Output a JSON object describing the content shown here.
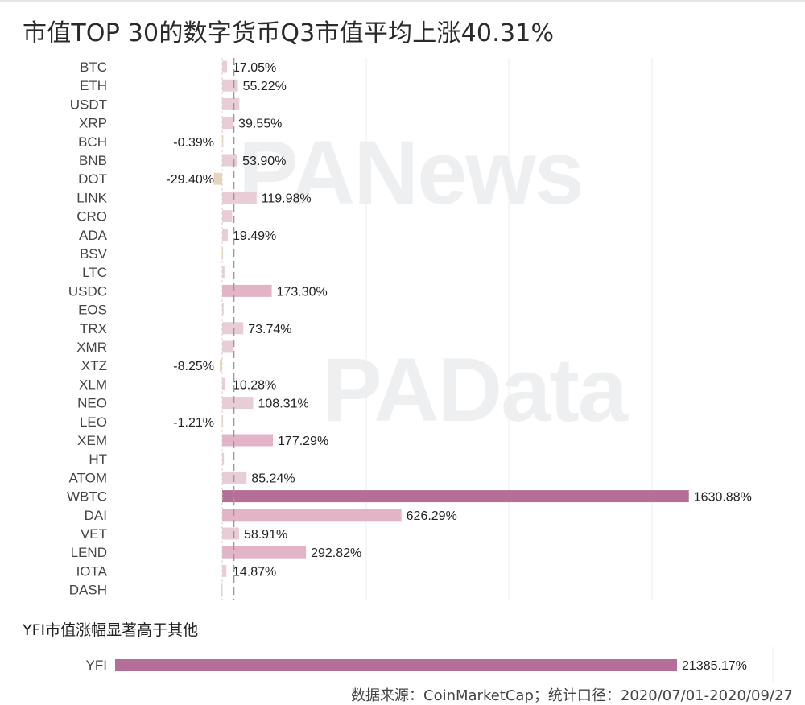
{
  "title": "市值TOP 30的数字货币Q3市值平均上涨40.31%",
  "subtitle": "YFI市值涨幅显著高于其他",
  "source": "数据来源：CoinMarketCap；统计口径：2020/07/01-2020/09/27",
  "watermarks": {
    "top": "PANews",
    "bottom": "PAData"
  },
  "colors": {
    "bar_small": "#e8cdd6",
    "bar_mid": "#e3b4c6",
    "bar_high": "#b56e98",
    "bar_negative": "#e6d6bd",
    "average_line": "#9a9a9a",
    "gridline": "#ececec"
  },
  "chart_data": [
    {
      "type": "bar",
      "orientation": "horizontal",
      "title": "市值TOP 30的数字货币Q3市值平均上涨40.31%",
      "average": 40.31,
      "categories": [
        "BTC",
        "ETH",
        "USDT",
        "XRP",
        "BCH",
        "BNB",
        "DOT",
        "LINK",
        "CRO",
        "ADA",
        "BSV",
        "LTC",
        "USDC",
        "EOS",
        "TRX",
        "XMR",
        "XTZ",
        "XLM",
        "NEO",
        "LEO",
        "XEM",
        "HT",
        "ATOM",
        "WBTC",
        "DAI",
        "VET",
        "LEND",
        "IOTA",
        "DASH"
      ],
      "values": [
        17.05,
        55.22,
        60,
        39.55,
        -0.39,
        53.9,
        -29.4,
        119.98,
        35,
        19.49,
        -1,
        8,
        173.3,
        5,
        73.74,
        40,
        -8.25,
        10.28,
        108.31,
        -1.21,
        177.29,
        6,
        85.24,
        1630.88,
        626.29,
        58.91,
        292.82,
        14.87,
        -3
      ],
      "labels": [
        "17.05%",
        "55.22%",
        "",
        "39.55%",
        "-0.39%",
        "53.90%",
        "-29.40%",
        "119.98%",
        "",
        "19.49%",
        "",
        "",
        "173.30%",
        "",
        "73.74%",
        "",
        "-8.25%",
        "10.28%",
        "108.31%",
        "-1.21%",
        "177.29%",
        "",
        "85.24%",
        "1630.88%",
        "626.29%",
        "58.91%",
        "292.82%",
        "14.87%",
        ""
      ],
      "xlim": [
        -30,
        1640
      ],
      "grid": true
    },
    {
      "type": "bar",
      "orientation": "horizontal",
      "title": "YFI市值涨幅显著高于其他",
      "categories": [
        "YFI"
      ],
      "values": [
        21385.17
      ],
      "labels": [
        "21385.17%"
      ],
      "xlim": [
        0,
        21385.17
      ]
    }
  ]
}
